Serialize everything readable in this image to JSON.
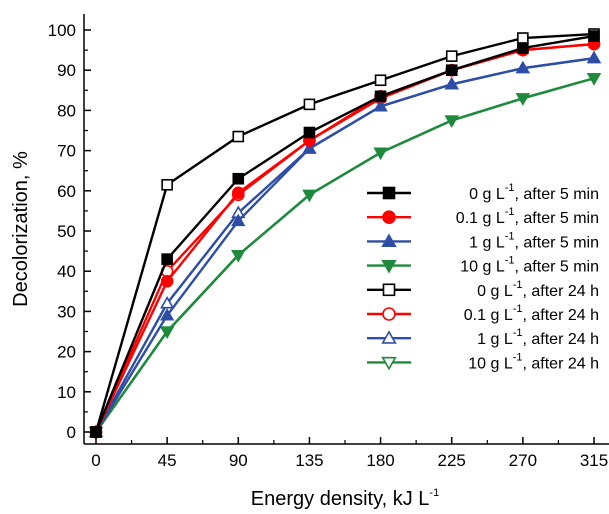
{
  "chart_data": {
    "type": "line",
    "xlabel": "Energy density, kJ L",
    "xlabel_sup": "-1",
    "ylabel": "Decolorization, %",
    "xlim": [
      -6,
      330
    ],
    "ylim": [
      -3,
      105
    ],
    "xticks": [
      0,
      45,
      90,
      135,
      180,
      225,
      270,
      315
    ],
    "yticks": [
      0,
      10,
      20,
      30,
      40,
      50,
      60,
      70,
      80,
      90,
      100
    ],
    "grid": false,
    "legend_position": "center-right",
    "x": [
      0,
      45,
      90,
      135,
      180,
      225,
      270,
      315
    ],
    "series": [
      {
        "name_pre": "0 g L",
        "name_sup": "-1",
        "name_post": ", after 5 min",
        "color": "#000000",
        "marker": "square",
        "filled": true,
        "values": [
          0,
          43,
          63,
          74.5,
          83.5,
          90,
          95.5,
          98.5
        ]
      },
      {
        "name_pre": "0.1 g L",
        "name_sup": "-1",
        "name_post": ", after 5 min",
        "color": "#ff0000",
        "marker": "circle",
        "filled": true,
        "values": [
          0,
          37.5,
          59.5,
          72.5,
          83.5,
          90,
          95,
          96.5
        ]
      },
      {
        "name_pre": "1 g L",
        "name_sup": "-1",
        "name_post": ", after 5 min",
        "color": "#2e4ea6",
        "marker": "triangle-up",
        "filled": true,
        "values": [
          0,
          29,
          52.5,
          70.5,
          81,
          86.5,
          90.5,
          93
        ]
      },
      {
        "name_pre": "10 g L",
        "name_sup": "-1",
        "name_post": ", after 5 min",
        "color": "#1e8a3c",
        "marker": "triangle-down",
        "filled": true,
        "values": [
          0,
          25,
          44,
          59,
          69.5,
          77.5,
          83,
          88
        ]
      },
      {
        "name_pre": "0 g L",
        "name_sup": "-1",
        "name_post": ", after 24 h",
        "color": "#000000",
        "marker": "square",
        "filled": false,
        "values": [
          0,
          61.5,
          73.5,
          81.5,
          87.5,
          93.5,
          98,
          99
        ]
      },
      {
        "name_pre": "0.1 g L",
        "name_sup": "-1",
        "name_post": ", after 24 h",
        "color": "#ff0000",
        "marker": "circle",
        "filled": false,
        "values": [
          0,
          40,
          59,
          72.5,
          83,
          90,
          95,
          96.5
        ]
      },
      {
        "name_pre": "1 g L",
        "name_sup": "-1",
        "name_post": ", after 24 h",
        "color": "#2e4ea6",
        "marker": "triangle-up",
        "filled": false,
        "values": [
          0,
          32,
          54.5,
          70.5,
          81,
          86.5,
          90.5,
          93
        ]
      },
      {
        "name_pre": "10 g L",
        "name_sup": "-1",
        "name_post": ", after 24 h",
        "color": "#1e8a3c",
        "marker": "triangle-down",
        "filled": false,
        "values": [
          0,
          25,
          44,
          59,
          69.5,
          77.5,
          83,
          88
        ]
      }
    ]
  }
}
